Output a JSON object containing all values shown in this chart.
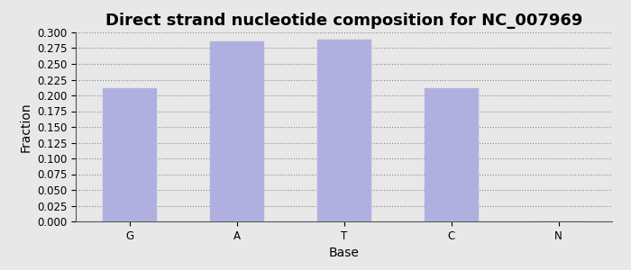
{
  "title": "Direct strand nucleotide composition for NC_007969",
  "categories": [
    "G",
    "A",
    "T",
    "C",
    "N"
  ],
  "values": [
    0.212,
    0.286,
    0.288,
    0.211,
    0.0
  ],
  "bar_color": "#b0b0e0",
  "bar_edgecolor": "#b0b0e0",
  "xlabel": "Base",
  "ylabel": "Fraction",
  "ylim": [
    0.0,
    0.3
  ],
  "ytick_step": 0.025,
  "title_fontsize": 13,
  "axis_fontsize": 10,
  "tick_fontsize": 8.5,
  "background_color": "#e8e8e8",
  "plot_bg_color": "#e8e8e8",
  "grid_color": "#888888",
  "figsize": [
    7.0,
    3.0
  ],
  "dpi": 100
}
